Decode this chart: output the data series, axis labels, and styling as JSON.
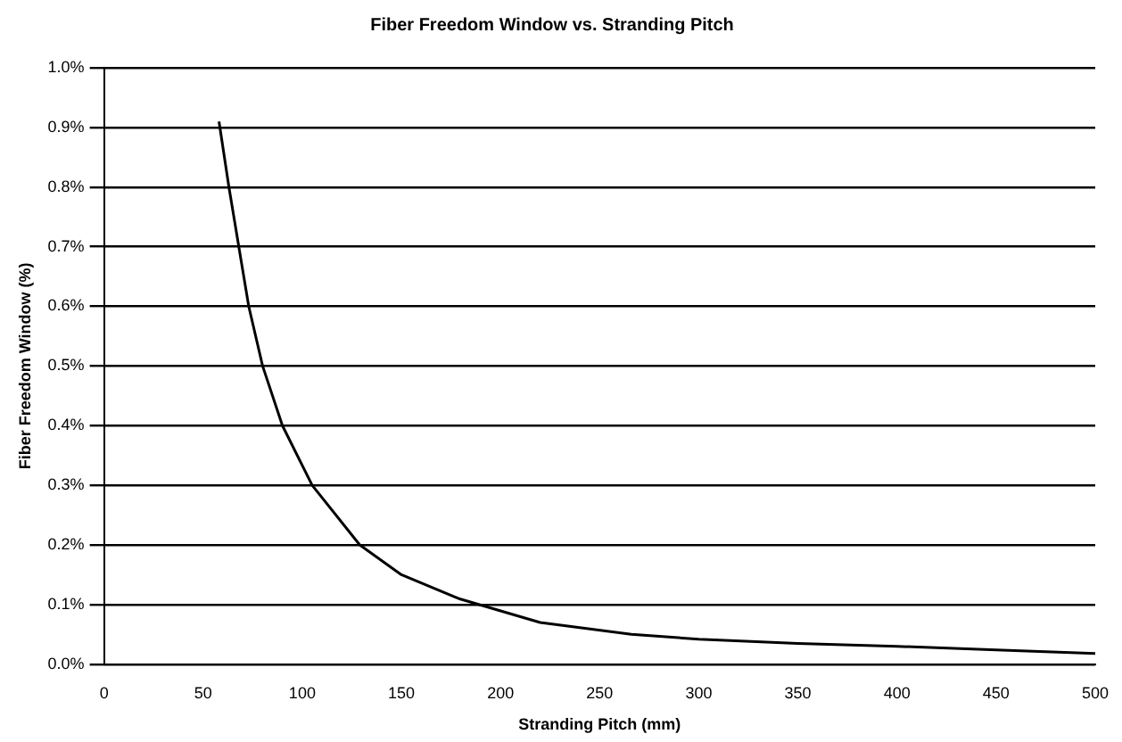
{
  "chart_data": {
    "type": "line",
    "title": "Fiber Freedom Window vs. Stranding Pitch",
    "xlabel": "Stranding Pitch (mm)",
    "ylabel": "Fiber Freedom Window (%)",
    "x": [
      58,
      63,
      68,
      73,
      80,
      90,
      105,
      129,
      150,
      179,
      220,
      266,
      300,
      350,
      400,
      450,
      500
    ],
    "series": [
      {
        "color": "#000000",
        "values": [
          0.91,
          0.8,
          0.7,
          0.6,
          0.5,
          0.4,
          0.3,
          0.2,
          0.15,
          0.11,
          0.07,
          0.05,
          0.042,
          0.035,
          0.03,
          0.024,
          0.018
        ]
      }
    ],
    "xlim": [
      0,
      500
    ],
    "xticks": [
      0,
      50,
      100,
      150,
      200,
      250,
      300,
      350,
      400,
      450,
      500
    ],
    "ylim": [
      0,
      1
    ],
    "yticks": [
      {
        "value": 0,
        "label": "0.0%"
      },
      {
        "value": 0.1,
        "label": "0.1%"
      },
      {
        "value": 0.2,
        "label": "0.2%"
      },
      {
        "value": 0.3,
        "label": "0.3%"
      },
      {
        "value": 0.4,
        "label": "0.4%"
      },
      {
        "value": 0.5,
        "label": "0.5%"
      },
      {
        "value": 0.6,
        "label": "0.6%"
      },
      {
        "value": 0.7,
        "label": "0.7%"
      },
      {
        "value": 0.8,
        "label": "0.8%"
      },
      {
        "value": 0.9,
        "label": "0.9%"
      },
      {
        "value": 1,
        "label": "1.0%"
      }
    ],
    "grid": "y",
    "legend": false,
    "marker": "none",
    "line_style": "solid"
  }
}
